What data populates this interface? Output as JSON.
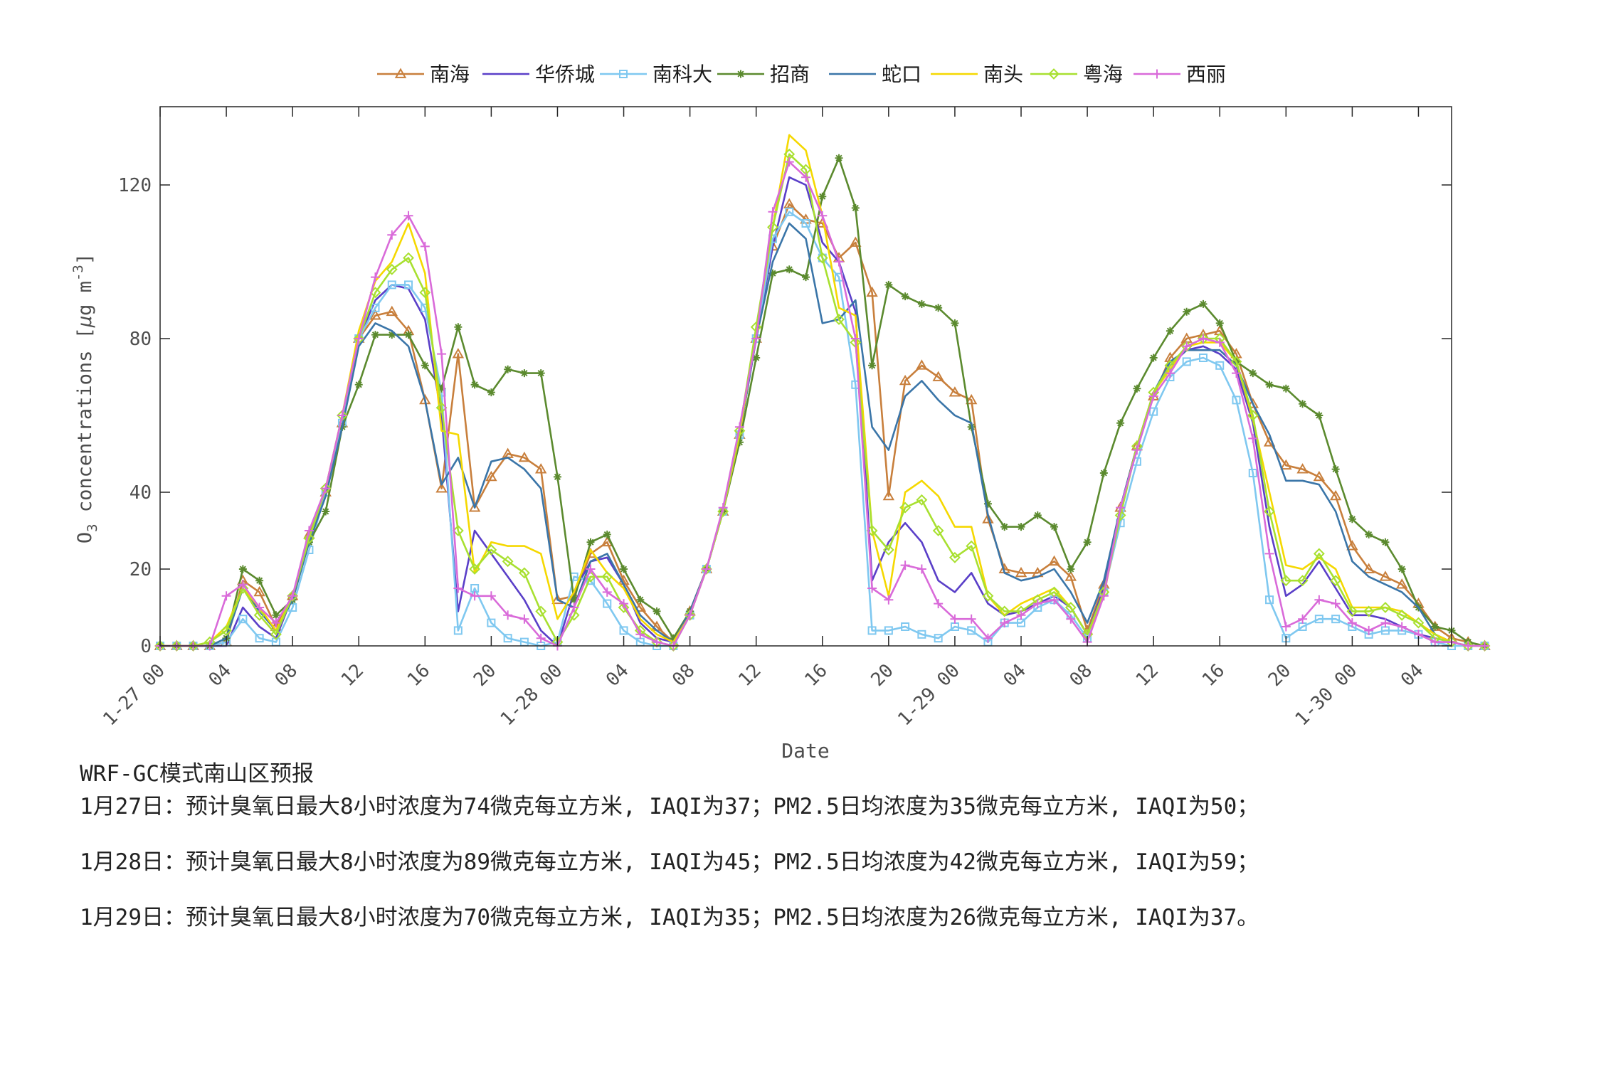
{
  "chart_data": {
    "type": "line",
    "title": "",
    "xlabel": "Date",
    "ylabel": "O3 concentrations [μg m-3]",
    "ylim": [
      0,
      140
    ],
    "yticks": [
      0,
      20,
      40,
      80,
      120
    ],
    "xlim": [
      0,
      78
    ],
    "grid": false,
    "legend_position": "top",
    "x_tick_labels": [
      {
        "x": 0,
        "label": "1-27 00"
      },
      {
        "x": 4,
        "label": "04"
      },
      {
        "x": 8,
        "label": "08"
      },
      {
        "x": 12,
        "label": "12"
      },
      {
        "x": 16,
        "label": "16"
      },
      {
        "x": 20,
        "label": "20"
      },
      {
        "x": 24,
        "label": "1-28 00"
      },
      {
        "x": 28,
        "label": "04"
      },
      {
        "x": 32,
        "label": "08"
      },
      {
        "x": 36,
        "label": "12"
      },
      {
        "x": 40,
        "label": "16"
      },
      {
        "x": 44,
        "label": "20"
      },
      {
        "x": 48,
        "label": "1-29 00"
      },
      {
        "x": 52,
        "label": "04"
      },
      {
        "x": 56,
        "label": "08"
      },
      {
        "x": 60,
        "label": "12"
      },
      {
        "x": 64,
        "label": "16"
      },
      {
        "x": 68,
        "label": "20"
      },
      {
        "x": 72,
        "label": "1-30 00"
      },
      {
        "x": 76,
        "label": "04"
      }
    ],
    "series": [
      {
        "name": "南海",
        "color": "#c87f3c",
        "marker": "triangle",
        "values": [
          0,
          0,
          0,
          0,
          1,
          17,
          14,
          5,
          13,
          29,
          40,
          58,
          80,
          86,
          87,
          82,
          64,
          41,
          76,
          36,
          44,
          50,
          49,
          46,
          12,
          13,
          24,
          27,
          17,
          10,
          5,
          1,
          9,
          20,
          35,
          55,
          80,
          104,
          115,
          111,
          110,
          101,
          105,
          92,
          39,
          69,
          73,
          70,
          66,
          64,
          33,
          20,
          19,
          19,
          22,
          18,
          4,
          16,
          36,
          52,
          65,
          75,
          80,
          81,
          82,
          76,
          63,
          53,
          47,
          46,
          44,
          39,
          26,
          20,
          18,
          16,
          11,
          5,
          2,
          1,
          0
        ]
      },
      {
        "name": "华侨城",
        "color": "#5a3fc8",
        "marker": "none",
        "values": [
          0,
          0,
          0,
          0,
          0,
          10,
          5,
          2,
          13,
          28,
          40,
          58,
          80,
          90,
          94,
          93,
          85,
          60,
          9,
          30,
          24,
          18,
          12,
          4,
          0,
          14,
          22,
          23,
          16,
          6,
          2,
          1,
          9,
          20,
          35,
          55,
          80,
          104,
          122,
          120,
          105,
          100,
          87,
          17,
          27,
          32,
          27,
          17,
          14,
          19,
          11,
          8,
          9,
          11,
          13,
          10,
          3,
          15,
          36,
          52,
          66,
          73,
          77,
          78,
          76,
          72,
          58,
          31,
          13,
          16,
          22,
          15,
          8,
          8,
          7,
          5,
          3,
          2,
          1,
          0,
          0
        ]
      },
      {
        "name": "南科大",
        "color": "#7fc8f0",
        "marker": "square",
        "values": [
          0,
          0,
          0,
          0,
          1,
          7,
          2,
          1,
          10,
          25,
          40,
          58,
          80,
          88,
          94,
          94,
          88,
          66,
          4,
          15,
          6,
          2,
          1,
          0,
          1,
          18,
          17,
          11,
          4,
          1,
          0,
          0,
          8,
          20,
          35,
          55,
          80,
          106,
          113,
          110,
          101,
          96,
          68,
          4,
          4,
          5,
          3,
          2,
          5,
          4,
          1,
          6,
          6,
          10,
          12,
          8,
          2,
          14,
          32,
          48,
          61,
          70,
          74,
          75,
          73,
          64,
          45,
          12,
          2,
          5,
          7,
          7,
          5,
          3,
          4,
          4,
          3,
          1,
          0,
          0,
          0
        ]
      },
      {
        "name": "招商",
        "color": "#5b8a2e",
        "marker": "star",
        "values": [
          0,
          0,
          0,
          0,
          2,
          20,
          17,
          8,
          12,
          27,
          35,
          57,
          68,
          81,
          81,
          81,
          73,
          67,
          83,
          68,
          66,
          72,
          71,
          71,
          44,
          12,
          27,
          29,
          20,
          12,
          9,
          2,
          9,
          20,
          35,
          53,
          75,
          97,
          98,
          96,
          117,
          127,
          114,
          73,
          94,
          91,
          89,
          88,
          84,
          57,
          37,
          31,
          31,
          34,
          31,
          20,
          27,
          45,
          58,
          67,
          75,
          82,
          87,
          89,
          84,
          74,
          71,
          68,
          67,
          63,
          60,
          46,
          33,
          29,
          27,
          20,
          10,
          5,
          4,
          1,
          0
        ]
      },
      {
        "name": "蛇口",
        "color": "#3a75a8",
        "marker": "none",
        "values": [
          0,
          0,
          0,
          0,
          2,
          15,
          9,
          4,
          12,
          27,
          39,
          57,
          78,
          84,
          82,
          78,
          64,
          42,
          49,
          36,
          48,
          49,
          46,
          41,
          12,
          10,
          22,
          24,
          16,
          8,
          4,
          1,
          9,
          20,
          35,
          55,
          80,
          100,
          110,
          106,
          84,
          85,
          90,
          57,
          51,
          65,
          69,
          64,
          60,
          58,
          34,
          19,
          17,
          18,
          20,
          14,
          6,
          17,
          36,
          52,
          66,
          74,
          77,
          77,
          77,
          73,
          63,
          55,
          43,
          43,
          42,
          35,
          22,
          18,
          16,
          14,
          10,
          3,
          1,
          0,
          0
        ]
      },
      {
        "name": "南头",
        "color": "#f5d800",
        "marker": "none",
        "values": [
          0,
          0,
          0,
          1,
          5,
          15,
          10,
          4,
          13,
          28,
          41,
          60,
          82,
          95,
          100,
          110,
          97,
          56,
          55,
          19,
          27,
          26,
          26,
          24,
          7,
          14,
          25,
          19,
          15,
          7,
          3,
          1,
          8,
          20,
          35,
          55,
          82,
          109,
          133,
          129,
          112,
          88,
          86,
          30,
          13,
          40,
          43,
          39,
          31,
          31,
          13,
          8,
          11,
          13,
          15,
          10,
          3,
          13,
          35,
          52,
          66,
          72,
          78,
          79,
          79,
          74,
          59,
          40,
          21,
          20,
          23,
          20,
          10,
          10,
          10,
          9,
          6,
          3,
          1,
          0,
          0
        ]
      },
      {
        "name": "粤海",
        "color": "#a8e030",
        "marker": "diamond",
        "values": [
          0,
          0,
          0,
          1,
          4,
          15,
          8,
          3,
          13,
          28,
          41,
          60,
          80,
          92,
          98,
          101,
          92,
          62,
          30,
          20,
          25,
          22,
          19,
          9,
          1,
          8,
          18,
          18,
          10,
          4,
          1,
          0,
          8,
          20,
          35,
          56,
          83,
          109,
          128,
          124,
          101,
          85,
          79,
          30,
          25,
          36,
          38,
          30,
          23,
          26,
          13,
          9,
          9,
          12,
          14,
          10,
          3,
          14,
          34,
          52,
          66,
          73,
          78,
          80,
          80,
          74,
          60,
          35,
          17,
          17,
          24,
          17,
          9,
          9,
          10,
          8,
          6,
          2,
          1,
          0,
          0
        ]
      },
      {
        "name": "西丽",
        "color": "#d96ad9",
        "marker": "plus",
        "values": [
          0,
          0,
          0,
          0,
          13,
          16,
          10,
          6,
          13,
          30,
          41,
          60,
          80,
          96,
          107,
          112,
          104,
          76,
          15,
          13,
          13,
          8,
          7,
          2,
          0,
          10,
          20,
          14,
          11,
          3,
          1,
          0,
          8,
          20,
          36,
          57,
          80,
          113,
          126,
          122,
          112,
          100,
          80,
          15,
          12,
          21,
          20,
          11,
          7,
          7,
          2,
          6,
          8,
          11,
          12,
          7,
          1,
          13,
          36,
          51,
          65,
          71,
          78,
          80,
          79,
          71,
          54,
          24,
          5,
          7,
          12,
          11,
          6,
          4,
          6,
          5,
          3,
          1,
          1,
          0,
          0
        ]
      }
    ]
  },
  "notes": {
    "title": "WRF-GC模式南山区预报",
    "lines": [
      "1月27日：预计臭氧日最大8小时浓度为74微克每立方米, IAQI为37；PM2.5日均浓度为35微克每立方米, IAQI为50；",
      "1月28日：预计臭氧日最大8小时浓度为89微克每立方米, IAQI为45；PM2.5日均浓度为42微克每立方米, IAQI为59；",
      "1月29日：预计臭氧日最大8小时浓度为70微克每立方米, IAQI为35；PM2.5日均浓度为26微克每立方米, IAQI为37。"
    ]
  },
  "colors": {
    "axis": "#262626",
    "tick_text": "#4d4d4d"
  }
}
